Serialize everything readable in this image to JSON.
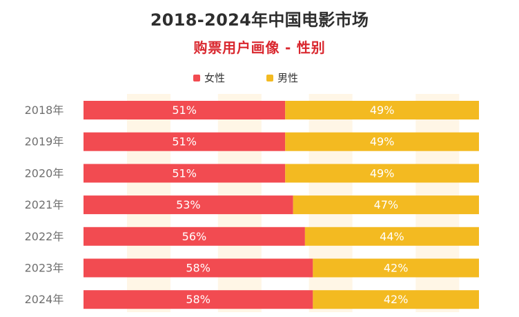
{
  "title": "2018-2024年中国电影市场",
  "subtitle": "购票用户画像 - 性别",
  "legend": {
    "female_label": "女性",
    "male_label": "男性"
  },
  "colors": {
    "female": "#F24B51",
    "male": "#F3BA21",
    "title": "#2E2E2E",
    "subtitle": "#D9272E",
    "year_text": "#6F6F6F",
    "bg_band": "#FFF6E6"
  },
  "chart_data": {
    "type": "bar",
    "stacked": true,
    "orientation": "horizontal",
    "title": "2018-2024年中国电影市场",
    "subtitle": "购票用户画像 - 性别",
    "categories": [
      "2018年",
      "2019年",
      "2020年",
      "2021年",
      "2022年",
      "2023年",
      "2024年"
    ],
    "series": [
      {
        "name": "女性",
        "values": [
          51,
          51,
          51,
          53,
          56,
          58,
          58
        ],
        "labels": [
          "51%",
          "51%",
          "51%",
          "53%",
          "56%",
          "58%",
          "58%"
        ]
      },
      {
        "name": "男性",
        "values": [
          49,
          49,
          49,
          47,
          44,
          42,
          42
        ],
        "labels": [
          "49%",
          "49%",
          "49%",
          "47%",
          "44%",
          "42%",
          "42%"
        ]
      }
    ],
    "xlim": [
      0,
      100
    ],
    "legend_position": "top-center",
    "grid": true
  }
}
